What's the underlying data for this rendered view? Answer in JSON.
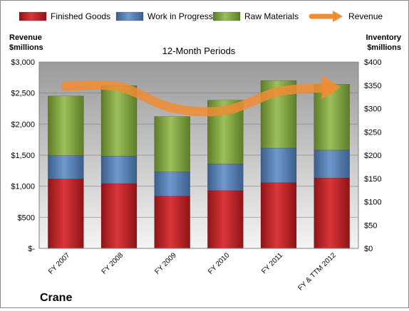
{
  "company": "Crane",
  "chart_data": {
    "type": "bar",
    "stacked": true,
    "title": "12-Month Periods",
    "categories": [
      "FY 2007",
      "FY 2008",
      "FY 2009",
      "FY 2010",
      "FY 2011",
      "FY & TTM 2012"
    ],
    "left_axis": {
      "label_line1": "Revenue",
      "label_line2": "$millions",
      "range": [
        0,
        3000
      ],
      "tick_values": [
        0,
        500,
        1000,
        1500,
        2000,
        2500,
        3000
      ],
      "tick_labels": [
        "$-",
        "$500",
        "$1,000",
        "$1,500",
        "$2,000",
        "$2,500",
        "$3,000"
      ]
    },
    "right_axis": {
      "label_line1": "Inventory",
      "label_line2": "$millions",
      "range": [
        0,
        400
      ],
      "tick_values": [
        0,
        50,
        100,
        150,
        200,
        250,
        300,
        350,
        400
      ],
      "tick_labels": [
        "$0",
        "$50",
        "$100",
        "$150",
        "$200",
        "$250",
        "$300",
        "$350",
        "$400"
      ]
    },
    "series": [
      {
        "name": "Finished Goods",
        "axis": "right",
        "color": "#c0272d",
        "values": [
          149,
          139,
          112,
          124,
          141,
          151
        ]
      },
      {
        "name": "Work in Progress",
        "axis": "right",
        "color": "#4f81bd",
        "values": [
          50,
          59,
          52,
          57,
          74,
          60
        ]
      },
      {
        "name": "Raw Materials",
        "axis": "right",
        "color": "#8cb048",
        "values": [
          128,
          151,
          119,
          137,
          145,
          141
        ]
      },
      {
        "name": "Revenue",
        "axis": "left",
        "type": "line",
        "color": "#f08c33",
        "values": [
          2610,
          2600,
          2260,
          2220,
          2520,
          2590
        ]
      }
    ],
    "legend_position": "top",
    "grid": true
  }
}
